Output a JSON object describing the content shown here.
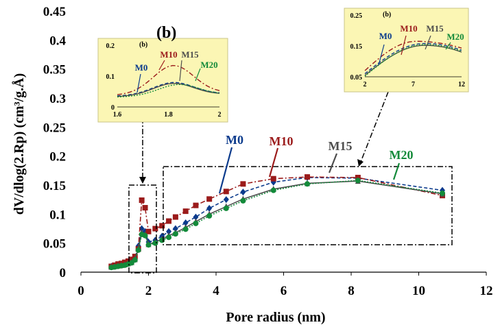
{
  "chart_data": {
    "type": "line",
    "panel_label": "(b)",
    "xlabel": "Pore radius (nm)",
    "ylabel": "dV/dlog(2.Rp) (cm³/g.Å)",
    "xlim": [
      0,
      12
    ],
    "ylim": [
      0,
      0.45
    ],
    "x_ticks": [
      "0",
      "2",
      "4",
      "6",
      "8",
      "10",
      "12"
    ],
    "y_ticks": [
      "0",
      "0.05",
      "0.1",
      "0.15",
      "0.2",
      "0.25",
      "0.3",
      "0.35",
      "0.4",
      "0.45"
    ],
    "series": [
      {
        "name": "M0",
        "color": "#0a3a8c",
        "marker": "diamond",
        "line": "dashed",
        "x": [
          0.9,
          1.0,
          1.1,
          1.2,
          1.3,
          1.4,
          1.5,
          1.6,
          1.7,
          1.8,
          1.9,
          2.0,
          2.2,
          2.4,
          2.6,
          2.8,
          3.1,
          3.4,
          3.8,
          4.3,
          4.8,
          5.7,
          6.7,
          8.2,
          10.7
        ],
        "y": [
          0.01,
          0.011,
          0.012,
          0.013,
          0.015,
          0.017,
          0.019,
          0.024,
          0.045,
          0.075,
          0.07,
          0.052,
          0.055,
          0.062,
          0.07,
          0.075,
          0.085,
          0.095,
          0.11,
          0.125,
          0.138,
          0.155,
          0.163,
          0.162,
          0.141
        ]
      },
      {
        "name": "M10",
        "color": "#9b1b1b",
        "marker": "square",
        "line": "dashdot",
        "x": [
          0.9,
          1.0,
          1.1,
          1.2,
          1.3,
          1.4,
          1.5,
          1.6,
          1.7,
          1.8,
          1.9,
          2.0,
          2.2,
          2.4,
          2.6,
          2.8,
          3.1,
          3.4,
          3.8,
          4.3,
          4.8,
          5.7,
          6.7,
          8.2,
          10.7
        ],
        "y": [
          0.01,
          0.012,
          0.014,
          0.015,
          0.017,
          0.019,
          0.022,
          0.027,
          0.04,
          0.124,
          0.111,
          0.07,
          0.075,
          0.08,
          0.088,
          0.095,
          0.105,
          0.115,
          0.126,
          0.139,
          0.152,
          0.161,
          0.164,
          0.163,
          0.132
        ]
      },
      {
        "name": "M15",
        "color": "#4d4d4d",
        "marker": "triangle",
        "line": "solid",
        "x": [
          0.9,
          1.0,
          1.1,
          1.2,
          1.3,
          1.4,
          1.5,
          1.6,
          1.7,
          1.8,
          1.9,
          2.0,
          2.2,
          2.4,
          2.6,
          2.8,
          3.1,
          3.4,
          3.8,
          4.3,
          4.8,
          5.7,
          6.7,
          8.2,
          10.7
        ],
        "y": [
          0.009,
          0.01,
          0.011,
          0.012,
          0.013,
          0.015,
          0.017,
          0.022,
          0.04,
          0.068,
          0.065,
          0.048,
          0.052,
          0.057,
          0.063,
          0.068,
          0.077,
          0.087,
          0.1,
          0.113,
          0.126,
          0.143,
          0.153,
          0.157,
          0.135
        ]
      },
      {
        "name": "M20",
        "color": "#138a3a",
        "marker": "circle",
        "line": "dotted",
        "x": [
          0.9,
          1.0,
          1.1,
          1.2,
          1.3,
          1.4,
          1.5,
          1.6,
          1.7,
          1.8,
          1.9,
          2.0,
          2.2,
          2.4,
          2.6,
          2.8,
          3.1,
          3.4,
          3.8,
          4.3,
          4.8,
          5.7,
          6.7,
          8.2,
          10.7
        ],
        "y": [
          0.008,
          0.009,
          0.01,
          0.011,
          0.012,
          0.014,
          0.016,
          0.021,
          0.038,
          0.065,
          0.063,
          0.047,
          0.05,
          0.055,
          0.06,
          0.066,
          0.074,
          0.084,
          0.097,
          0.11,
          0.123,
          0.141,
          0.152,
          0.158,
          0.136
        ]
      }
    ],
    "insets": [
      {
        "id": "left",
        "panel_label": "(b)",
        "xlim": [
          1.6,
          2.0
        ],
        "ylim": [
          0,
          0.2
        ],
        "x_ticks": [
          "1.6",
          "1.8",
          "2"
        ],
        "y_ticks": [
          "0",
          "0.1",
          "0.2"
        ],
        "labels": [
          "M0",
          "M10",
          "M15",
          "M20"
        ]
      },
      {
        "id": "right",
        "panel_label": "(b)",
        "xlim": [
          2,
          12
        ],
        "ylim": [
          0.05,
          0.25
        ],
        "x_ticks": [
          "2",
          "7",
          "12"
        ],
        "y_ticks": [
          "0.05",
          "0.15",
          "0.25"
        ],
        "labels": [
          "M0",
          "M10",
          "M15",
          "M20"
        ]
      }
    ]
  }
}
